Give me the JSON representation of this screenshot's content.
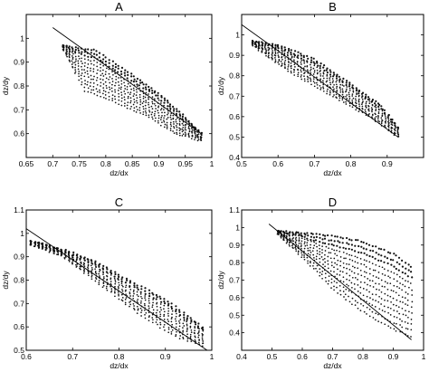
{
  "chart_data": [
    {
      "type": "scatter",
      "panel": "A",
      "xlabel": "dz/dx",
      "ylabel": "dz/dy",
      "xlim": [
        0.65,
        1
      ],
      "ylim": [
        0.5,
        1.1
      ],
      "xticks": [
        0.65,
        0.7,
        0.75,
        0.8,
        0.85,
        0.9,
        0.95,
        1
      ],
      "xtick_labels": [
        "0.65",
        "0.7",
        "0.75",
        "0.8",
        "0.85",
        "0.9",
        "0.95",
        "1"
      ],
      "yticks": [
        0.6,
        0.7,
        0.8,
        0.9,
        1
      ],
      "ytick_labels": [
        "0.6",
        "0.7",
        "0.8",
        "0.9",
        "1"
      ],
      "line": {
        "x": [
          0.7,
          0.98
        ],
        "y": [
          1.045,
          0.6
        ]
      },
      "cloud": {
        "upper": [
          [
            0.72,
            0.97
          ],
          [
            0.78,
            0.95
          ],
          [
            0.84,
            0.86
          ],
          [
            0.9,
            0.77
          ],
          [
            0.95,
            0.67
          ],
          [
            0.98,
            0.6
          ]
        ],
        "lower": [
          [
            0.72,
            0.95
          ],
          [
            0.76,
            0.78
          ],
          [
            0.82,
            0.73
          ],
          [
            0.88,
            0.67
          ],
          [
            0.93,
            0.6
          ],
          [
            0.98,
            0.57
          ]
        ]
      }
    },
    {
      "type": "scatter",
      "panel": "B",
      "xlabel": "dz/dx",
      "ylabel": "dz/dy",
      "xlim": [
        0.5,
        1
      ],
      "ylim": [
        0.4,
        1.1
      ],
      "xticks": [
        0.5,
        0.6,
        0.7,
        0.8,
        0.9
      ],
      "xtick_labels": [
        "0.5",
        "0.6",
        "0.7",
        "0.8",
        "0.9"
      ],
      "yticks": [
        0.4,
        0.5,
        0.6,
        0.7,
        0.8,
        0.9,
        1
      ],
      "ytick_labels": [
        "0.4",
        "0.5",
        "0.6",
        "0.7",
        "0.8",
        "0.9",
        "1"
      ],
      "line": {
        "x": [
          0.5,
          0.93
        ],
        "y": [
          1.05,
          0.5
        ]
      },
      "cloud": {
        "upper": [
          [
            0.53,
            0.97
          ],
          [
            0.6,
            0.95
          ],
          [
            0.7,
            0.88
          ],
          [
            0.8,
            0.76
          ],
          [
            0.88,
            0.66
          ],
          [
            0.93,
            0.55
          ]
        ],
        "lower": [
          [
            0.53,
            0.95
          ],
          [
            0.58,
            0.88
          ],
          [
            0.65,
            0.8
          ],
          [
            0.75,
            0.7
          ],
          [
            0.85,
            0.6
          ],
          [
            0.93,
            0.5
          ]
        ]
      }
    },
    {
      "type": "scatter",
      "panel": "C",
      "xlabel": "dz/dx",
      "ylabel": "dz/dy",
      "xlim": [
        0.6,
        1
      ],
      "ylim": [
        0.5,
        1.1
      ],
      "xticks": [
        0.6,
        0.7,
        0.8,
        0.9,
        1
      ],
      "xtick_labels": [
        "0.6",
        "0.7",
        "0.8",
        "0.9",
        "1"
      ],
      "yticks": [
        0.5,
        0.6,
        0.7,
        0.8,
        0.9,
        1,
        1.1
      ],
      "ytick_labels": [
        "0.5",
        "0.6",
        "0.7",
        "0.8",
        "0.9",
        "1",
        "1.1"
      ],
      "line": {
        "x": [
          0.6,
          0.99
        ],
        "y": [
          1.02,
          0.5
        ]
      },
      "cloud": {
        "upper": [
          [
            0.61,
            0.97
          ],
          [
            0.68,
            0.93
          ],
          [
            0.75,
            0.88
          ],
          [
            0.82,
            0.8
          ],
          [
            0.9,
            0.72
          ],
          [
            0.98,
            0.6
          ]
        ],
        "lower": [
          [
            0.61,
            0.95
          ],
          [
            0.68,
            0.9
          ],
          [
            0.76,
            0.78
          ],
          [
            0.84,
            0.66
          ],
          [
            0.92,
            0.56
          ],
          [
            0.98,
            0.52
          ]
        ]
      }
    },
    {
      "type": "scatter",
      "panel": "D",
      "xlabel": "dz/dx",
      "ylabel": "dz/dy",
      "xlim": [
        0.4,
        1
      ],
      "ylim": [
        0.3,
        1.1
      ],
      "xticks": [
        0.4,
        0.5,
        0.6,
        0.7,
        0.8,
        0.9,
        1
      ],
      "xtick_labels": [
        "0.4",
        "0.5",
        "0.6",
        "0.7",
        "0.8",
        "0.9",
        "1"
      ],
      "yticks": [
        0.4,
        0.5,
        0.6,
        0.7,
        0.8,
        0.9,
        1,
        1.1
      ],
      "ytick_labels": [
        "0.4",
        "0.5",
        "0.6",
        "0.7",
        "0.8",
        "0.9",
        "1",
        "1.1"
      ],
      "line": {
        "x": [
          0.49,
          0.96
        ],
        "y": [
          1.02,
          0.36
        ]
      },
      "cloud": {
        "upper": [
          [
            0.52,
            0.98
          ],
          [
            0.6,
            0.97
          ],
          [
            0.7,
            0.95
          ],
          [
            0.8,
            0.92
          ],
          [
            0.9,
            0.85
          ],
          [
            0.96,
            0.78
          ]
        ],
        "lower": [
          [
            0.52,
            0.96
          ],
          [
            0.6,
            0.83
          ],
          [
            0.7,
            0.65
          ],
          [
            0.8,
            0.52
          ],
          [
            0.9,
            0.42
          ],
          [
            0.96,
            0.38
          ]
        ]
      }
    }
  ]
}
